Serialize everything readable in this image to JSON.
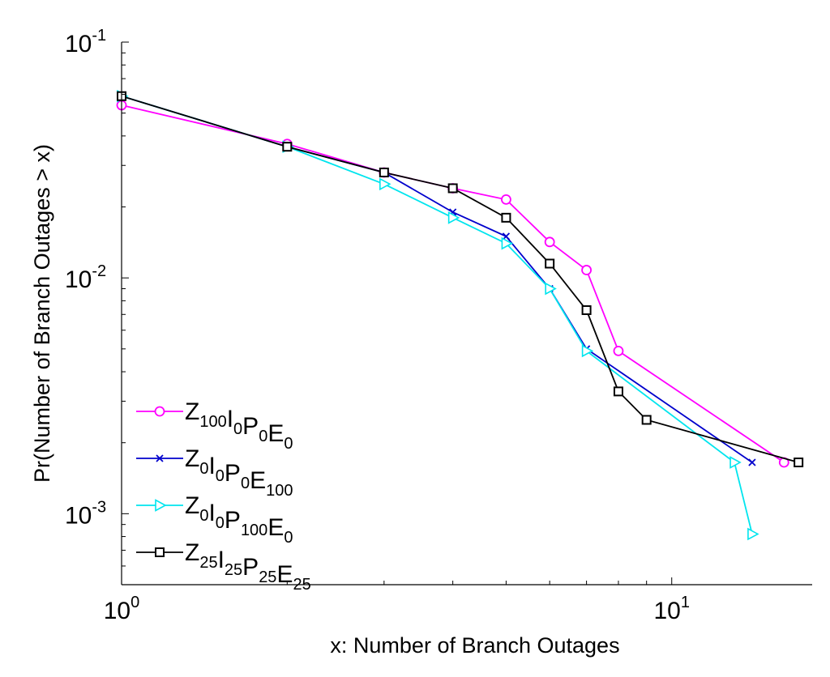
{
  "chart_data": {
    "type": "line",
    "xlabel": "x: Number of Branch Outages",
    "ylabel": "Pr(Number of Branch Outages > x)",
    "x_scale": "log",
    "y_scale": "log",
    "xlim": [
      1,
      18
    ],
    "ylim": [
      0.0005,
      0.1
    ],
    "x_ticks": [
      {
        "value": 1,
        "base": "10",
        "exp": "0"
      },
      {
        "value": 10,
        "base": "10",
        "exp": "1"
      }
    ],
    "y_ticks": [
      {
        "value": 0.1,
        "base": "10",
        "exp": "-1"
      },
      {
        "value": 0.01,
        "base": "10",
        "exp": "-2"
      },
      {
        "value": 0.001,
        "base": "10",
        "exp": "-3"
      }
    ],
    "grid": false,
    "legend_position": "bottom-left",
    "series": [
      {
        "legend": [
          [
            "Z",
            ""
          ],
          [
            "",
            "100"
          ],
          [
            "I",
            ""
          ],
          [
            "",
            "0"
          ],
          [
            "P",
            ""
          ],
          [
            "",
            "0"
          ],
          [
            "E",
            ""
          ],
          [
            "",
            "0"
          ]
        ],
        "color": "#ff00ff",
        "marker": "circle",
        "x": [
          1,
          2,
          3,
          4,
          5,
          6,
          7,
          8,
          16
        ],
        "y": [
          0.054,
          0.037,
          0.028,
          0.024,
          0.0215,
          0.0142,
          0.0108,
          0.0049,
          0.00165
        ]
      },
      {
        "legend": [
          [
            "Z",
            ""
          ],
          [
            "",
            "0"
          ],
          [
            "I",
            ""
          ],
          [
            "",
            "0"
          ],
          [
            "P",
            ""
          ],
          [
            "",
            "0"
          ],
          [
            "E",
            ""
          ],
          [
            "",
            "100"
          ]
        ],
        "color": "#0000cc",
        "marker": "x",
        "x": [
          1,
          2,
          3,
          4,
          5,
          6,
          7,
          14
        ],
        "y": [
          0.059,
          0.036,
          0.028,
          0.019,
          0.015,
          0.009,
          0.005,
          0.00165
        ]
      },
      {
        "legend": [
          [
            "Z",
            ""
          ],
          [
            "",
            "0"
          ],
          [
            "I",
            ""
          ],
          [
            "",
            "0"
          ],
          [
            "P",
            ""
          ],
          [
            "",
            "100"
          ],
          [
            "E",
            ""
          ],
          [
            "",
            "0"
          ]
        ],
        "color": "#00e5ee",
        "marker": "triangle-right",
        "x": [
          1,
          2,
          3,
          4,
          5,
          6,
          7,
          13,
          14
        ],
        "y": [
          0.059,
          0.036,
          0.025,
          0.018,
          0.014,
          0.009,
          0.0049,
          0.00165,
          0.00082
        ]
      },
      {
        "legend": [
          [
            "Z",
            ""
          ],
          [
            "",
            "25"
          ],
          [
            "I",
            ""
          ],
          [
            "",
            "25"
          ],
          [
            "P",
            ""
          ],
          [
            "",
            "25"
          ],
          [
            "E",
            ""
          ],
          [
            "",
            "25"
          ]
        ],
        "color": "#000000",
        "marker": "square",
        "x": [
          1,
          2,
          3,
          4,
          5,
          6,
          7,
          8,
          9,
          17
        ],
        "y": [
          0.059,
          0.036,
          0.028,
          0.024,
          0.018,
          0.0115,
          0.0073,
          0.0033,
          0.0025,
          0.00165
        ]
      }
    ]
  }
}
